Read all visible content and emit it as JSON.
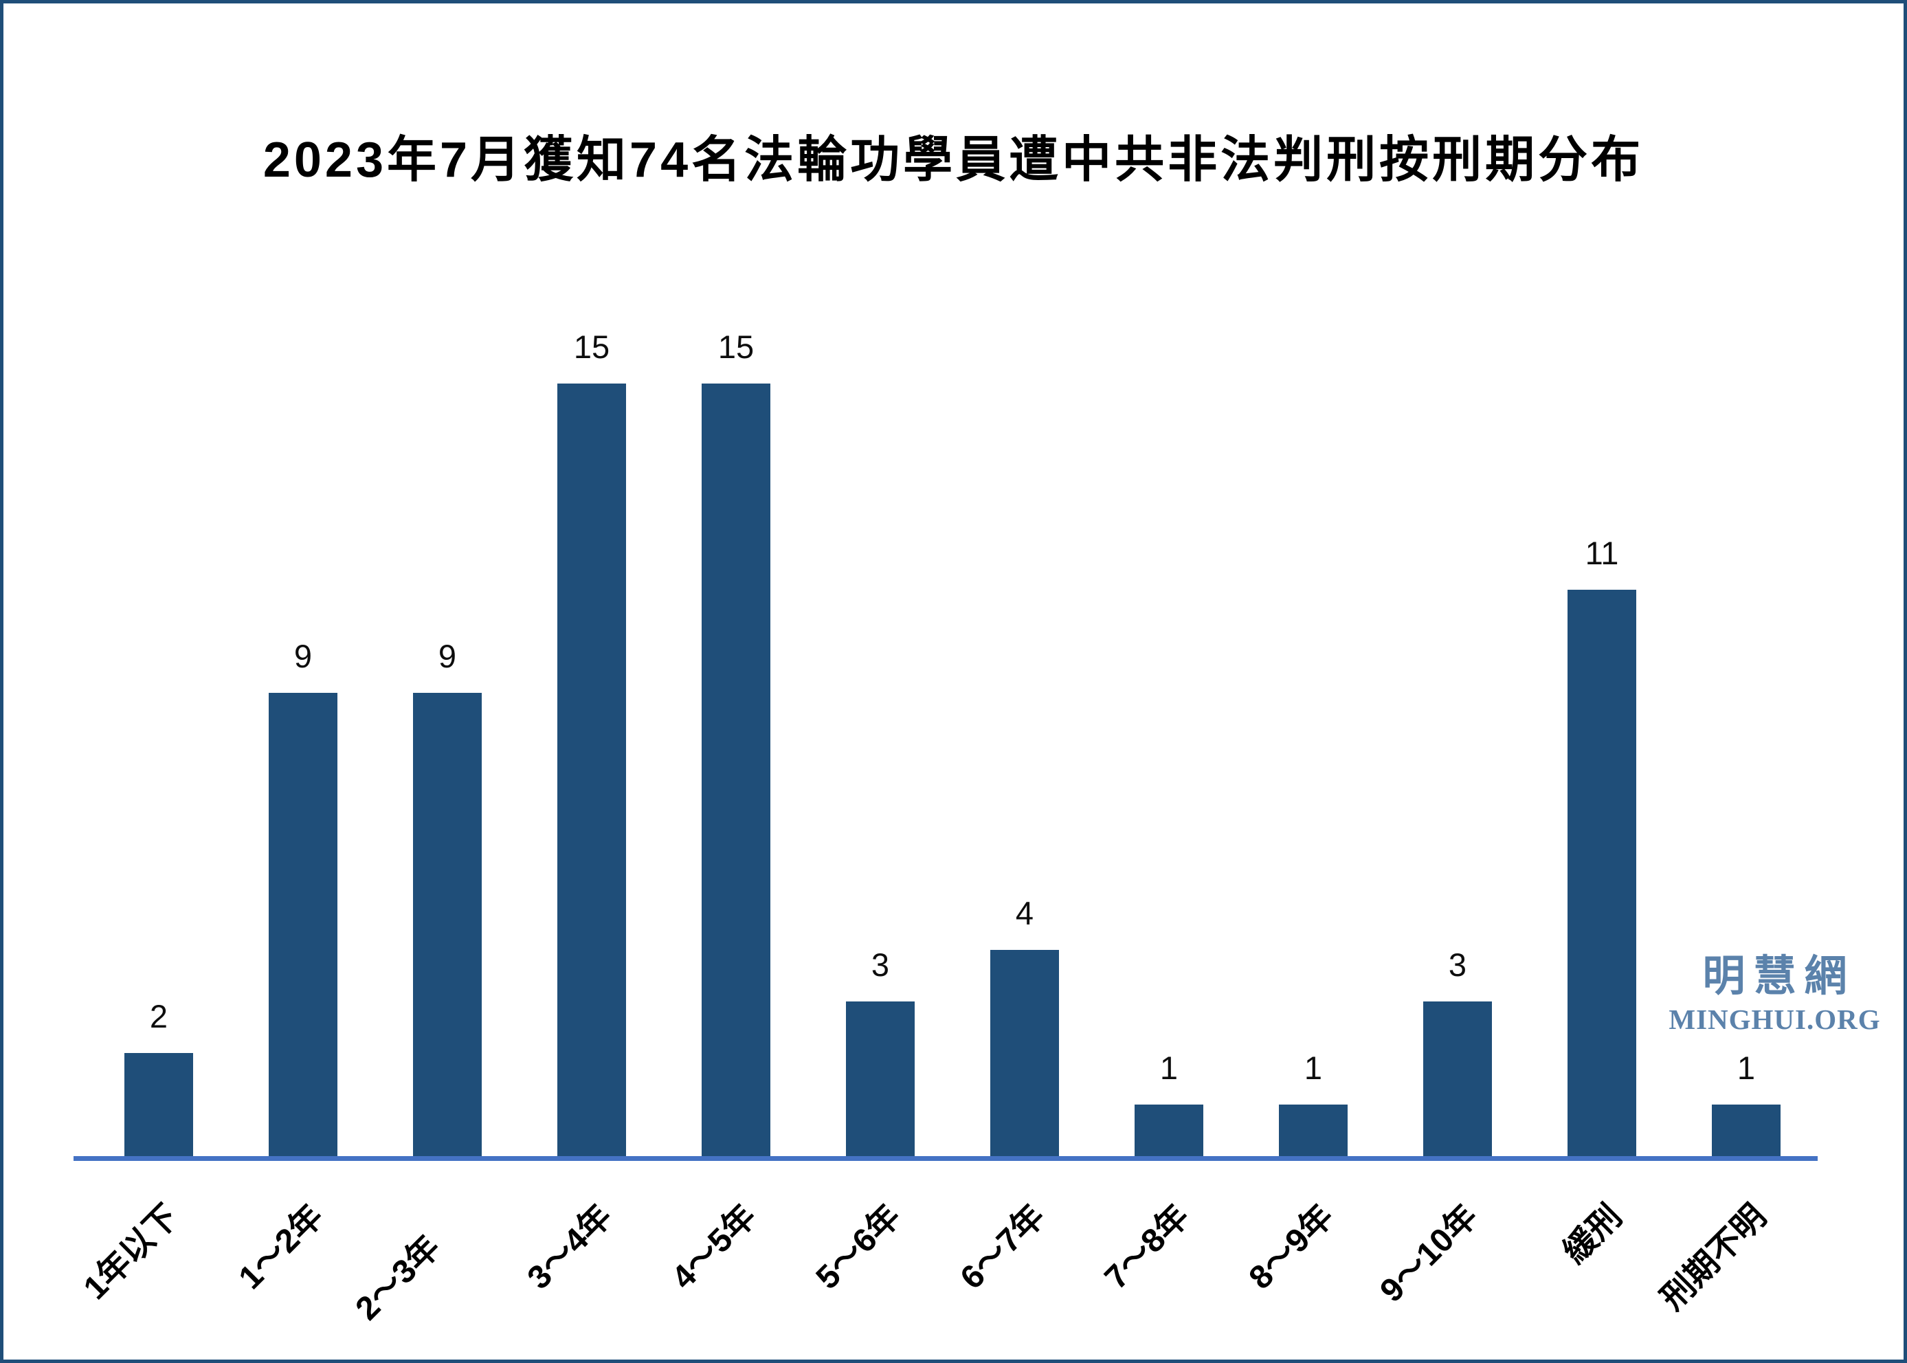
{
  "page": {
    "background": "#FFFFFF",
    "border_color": "#1F4E79"
  },
  "title": "2023年7月獲知74名法輪功學員遭中共非法判刑按刑期分布",
  "watermark": {
    "cjk": "明慧網",
    "latin": "MINGHUI.ORG",
    "color": "#5B82AB"
  },
  "chart_data": {
    "type": "bar",
    "title": "2023年7月獲知74名法輪功學員遭中共非法判刑按刑期分布",
    "categories": [
      "1年以下",
      "1～2年",
      "2～3年",
      "3～4年",
      "4～5年",
      "5～6年",
      "6～7年",
      "7～8年",
      "8～9年",
      "9～10年",
      "緩刑",
      "刑期不明"
    ],
    "values": [
      2,
      9,
      9,
      15,
      15,
      3,
      4,
      1,
      1,
      3,
      11,
      1
    ],
    "total": 74,
    "xlabel": "",
    "ylabel": "",
    "ylim": [
      0,
      16
    ],
    "grid": false,
    "legend_position": "none",
    "data_labels": true,
    "x_tick_rotation": 45,
    "bar_color": "#1F4E79",
    "axis_color": "#4472C4"
  }
}
